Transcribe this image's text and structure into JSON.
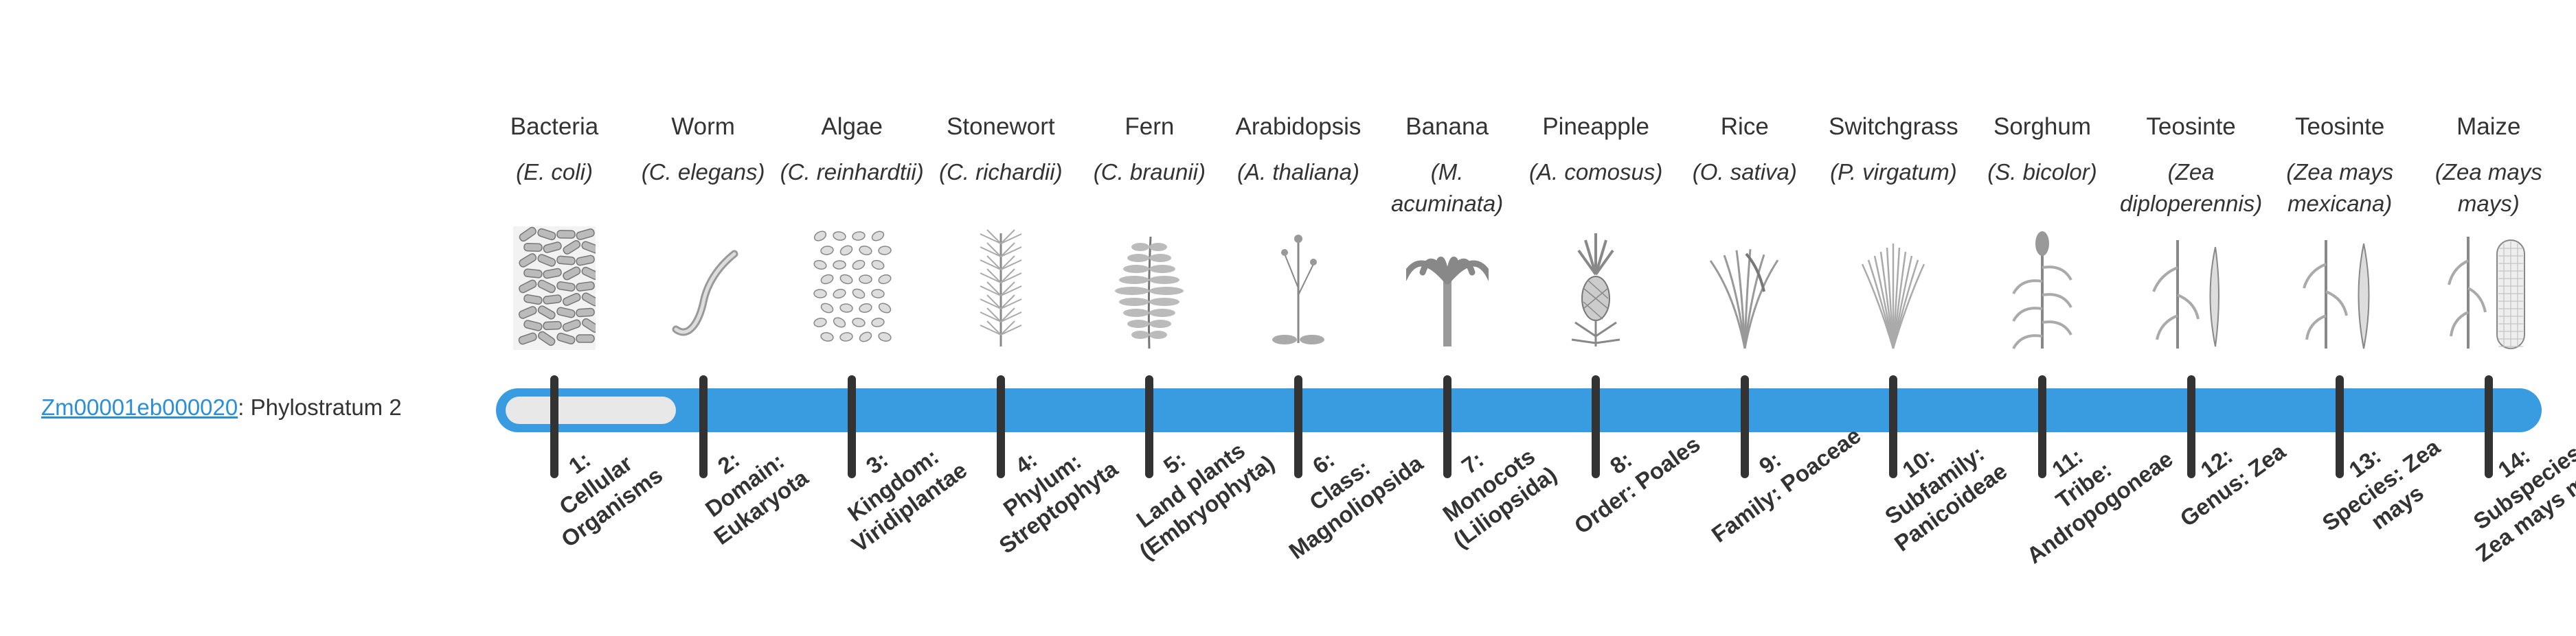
{
  "gene": {
    "id": "Zm00001eb000020",
    "label_suffix": ": Phylostratum 2",
    "current_stratum": 2
  },
  "colors": {
    "track": "#3a9ce0",
    "track_fill": "#e8e8e8",
    "tick": "#333333",
    "link": "#2b8fd8"
  },
  "organisms": [
    {
      "common": "Bacteria",
      "sci": "E. coli",
      "icon": "bacteria-icon",
      "stratum_num": "1:",
      "stratum_name": "Cellular Organisms"
    },
    {
      "common": "Worm",
      "sci": "C. elegans",
      "icon": "worm-icon",
      "stratum_num": "2:",
      "stratum_name": "Domain: Eukaryota"
    },
    {
      "common": "Algae",
      "sci": "C. reinhardtii",
      "icon": "algae-icon",
      "stratum_num": "3:",
      "stratum_name": "Kingdom: Viridiplantae"
    },
    {
      "common": "Stonewort",
      "sci": "C. richardii",
      "icon": "stonewort-icon",
      "stratum_num": "4:",
      "stratum_name": "Phylum: Streptophyta"
    },
    {
      "common": "Fern",
      "sci": "C. braunii",
      "icon": "fern-icon",
      "stratum_num": "5:",
      "stratum_name": "Land plants (Embryophyta)"
    },
    {
      "common": "Arabidopsis",
      "sci": "A. thaliana",
      "icon": "arabidopsis-icon",
      "stratum_num": "6:",
      "stratum_name": "Class: Magnoliopsida"
    },
    {
      "common": "Banana",
      "sci": "M. acuminata",
      "icon": "banana-icon",
      "stratum_num": "7:",
      "stratum_name": "Monocots (Liliopsida)"
    },
    {
      "common": "Pineapple",
      "sci": "A. comosus",
      "icon": "pineapple-icon",
      "stratum_num": "8:",
      "stratum_name": "Order: Poales"
    },
    {
      "common": "Rice",
      "sci": "O. sativa",
      "icon": "rice-icon",
      "stratum_num": "9:",
      "stratum_name": "Family: Poaceae"
    },
    {
      "common": "Switchgrass",
      "sci": "P. virgatum",
      "icon": "switchgrass-icon",
      "stratum_num": "10:",
      "stratum_name": "Subfamily: Panicoideae"
    },
    {
      "common": "Sorghum",
      "sci": "S. bicolor",
      "icon": "sorghum-icon",
      "stratum_num": "11:",
      "stratum_name": "Tribe: Andropogoneae"
    },
    {
      "common": "Teosinte",
      "sci": "Zea diploperennis",
      "icon": "teosinte-icon",
      "stratum_num": "12:",
      "stratum_name": "Genus: Zea"
    },
    {
      "common": "Teosinte",
      "sci": "Zea mays mexicana",
      "icon": "teosinte-mexicana-icon",
      "stratum_num": "13:",
      "stratum_name": "Species: Zea mays"
    },
    {
      "common": "Maize",
      "sci": "Zea mays mays",
      "icon": "maize-icon",
      "stratum_num": "14:",
      "stratum_name": "Subspecies: Zea mays mays"
    }
  ]
}
